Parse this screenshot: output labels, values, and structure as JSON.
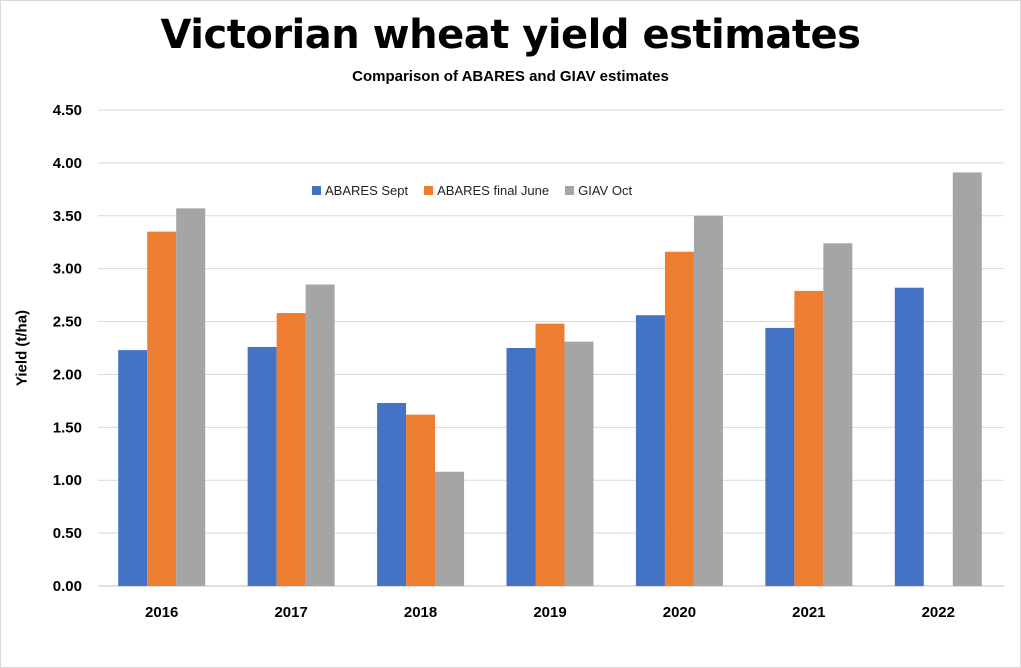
{
  "chart_data": {
    "type": "bar",
    "title": "Victorian wheat yield estimates",
    "subtitle": "Comparison of ABARES and GIAV estimates",
    "ylabel": "Yield (t/ha)",
    "xlabel": "",
    "ylim": [
      0,
      4.5
    ],
    "y_ticks": [
      "0.00",
      "0.50",
      "1.00",
      "1.50",
      "2.00",
      "2.50",
      "3.00",
      "3.50",
      "4.00",
      "4.50"
    ],
    "grid": true,
    "legend_position": "top-center",
    "categories": [
      "2016",
      "2017",
      "2018",
      "2019",
      "2020",
      "2021",
      "2022"
    ],
    "series": [
      {
        "name": "ABARES Sept",
        "color": "#4472c4",
        "values": [
          2.23,
          2.26,
          1.73,
          2.25,
          2.56,
          2.44,
          2.82
        ]
      },
      {
        "name": "ABARES final June",
        "color": "#ed7d31",
        "values": [
          3.35,
          2.58,
          1.62,
          2.48,
          3.16,
          2.79,
          null
        ]
      },
      {
        "name": "GIAV Oct",
        "color": "#a5a5a5",
        "values": [
          3.57,
          2.85,
          1.08,
          2.31,
          3.5,
          3.24,
          3.91
        ]
      }
    ]
  }
}
